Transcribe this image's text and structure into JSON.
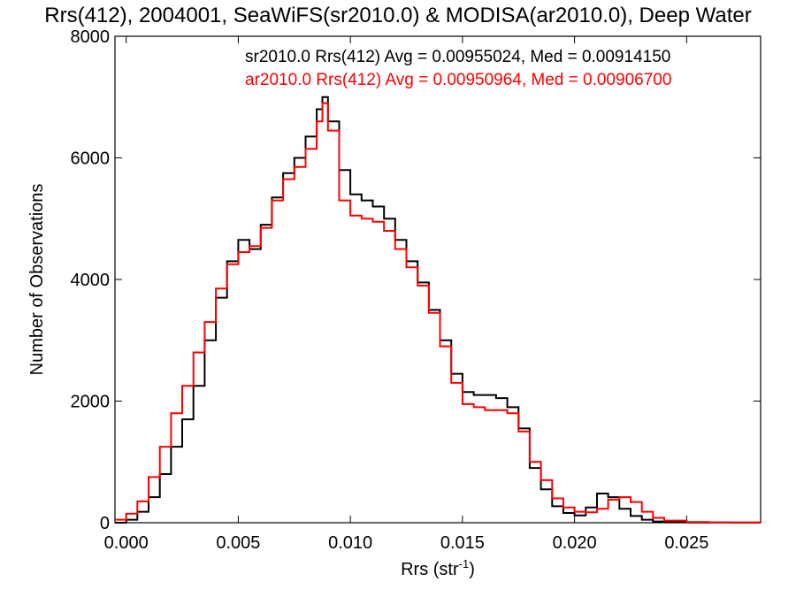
{
  "chart_data": {
    "type": "line",
    "title": "Rrs(412), 2004001, SeaWiFS(sr2010.0) & MODISA(ar2010.0), Deep Water",
    "xlabel": "Rrs (str",
    "xlabel_sup": "-1",
    "xlabel_close": ")",
    "ylabel": "Number of Observations",
    "xlim": [
      -0.0005,
      0.0283
    ],
    "ylim": [
      0,
      8000
    ],
    "xticks": [
      "0.000",
      "0.005",
      "0.010",
      "0.015",
      "0.020",
      "0.025"
    ],
    "yticks": [
      "0",
      "2000",
      "4000",
      "6000",
      "8000"
    ],
    "grid": false,
    "annotations": [
      {
        "text": "sr2010.0 Rrs(412) Avg = 0.00955024, Med = 0.00914150",
        "color": "#000000"
      },
      {
        "text": "ar2010.0 Rrs(412) Avg = 0.00950964, Med = 0.00906700",
        "color": "#ff0000"
      }
    ],
    "series": [
      {
        "color": "#000000",
        "x": [
          -0.0005,
          0.0,
          0.0005,
          0.001,
          0.0015,
          0.002,
          0.0025,
          0.003,
          0.0035,
          0.004,
          0.0045,
          0.005,
          0.0055,
          0.006,
          0.0065,
          0.007,
          0.0075,
          0.008,
          0.0085,
          0.00875,
          0.009,
          0.0095,
          0.01,
          0.0105,
          0.011,
          0.0115,
          0.012,
          0.0125,
          0.013,
          0.0135,
          0.014,
          0.0145,
          0.015,
          0.0155,
          0.016,
          0.0165,
          0.017,
          0.0175,
          0.018,
          0.0185,
          0.019,
          0.0195,
          0.02,
          0.0205,
          0.021,
          0.0215,
          0.022,
          0.0225,
          0.023,
          0.0235,
          0.024,
          0.025,
          0.026,
          0.027,
          0.0283
        ],
        "y": [
          0,
          50,
          180,
          420,
          800,
          1250,
          1700,
          2250,
          3000,
          3700,
          4300,
          4650,
          4500,
          4900,
          5350,
          5750,
          6000,
          6350,
          6800,
          7000,
          6600,
          5800,
          5400,
          5300,
          5200,
          5000,
          4650,
          4300,
          3950,
          3500,
          3000,
          2450,
          2150,
          2100,
          2100,
          2050,
          1900,
          1550,
          900,
          550,
          270,
          160,
          120,
          250,
          480,
          420,
          230,
          110,
          50,
          20,
          10,
          5,
          3,
          2,
          0
        ]
      },
      {
        "color": "#ff0000",
        "x": [
          -0.0005,
          0.0,
          0.0005,
          0.001,
          0.0015,
          0.002,
          0.0025,
          0.003,
          0.0035,
          0.004,
          0.0045,
          0.005,
          0.0055,
          0.006,
          0.0065,
          0.007,
          0.0075,
          0.008,
          0.0085,
          0.00875,
          0.009,
          0.0095,
          0.01,
          0.0105,
          0.011,
          0.0115,
          0.012,
          0.0125,
          0.013,
          0.0135,
          0.014,
          0.0145,
          0.015,
          0.0155,
          0.016,
          0.0165,
          0.017,
          0.0175,
          0.018,
          0.0185,
          0.019,
          0.0195,
          0.02,
          0.0205,
          0.021,
          0.0215,
          0.022,
          0.0225,
          0.023,
          0.0235,
          0.024,
          0.025,
          0.026,
          0.027,
          0.0283
        ],
        "y": [
          50,
          150,
          350,
          750,
          1250,
          1800,
          2250,
          2800,
          3300,
          3850,
          4250,
          4450,
          4550,
          4850,
          5300,
          5650,
          5850,
          6150,
          6600,
          6900,
          6450,
          5300,
          5050,
          5000,
          4950,
          4800,
          4500,
          4200,
          3900,
          3450,
          2900,
          2300,
          1950,
          1900,
          1850,
          1850,
          1800,
          1500,
          1000,
          700,
          400,
          250,
          180,
          170,
          230,
          380,
          420,
          340,
          180,
          80,
          35,
          12,
          6,
          3,
          0
        ]
      }
    ]
  }
}
